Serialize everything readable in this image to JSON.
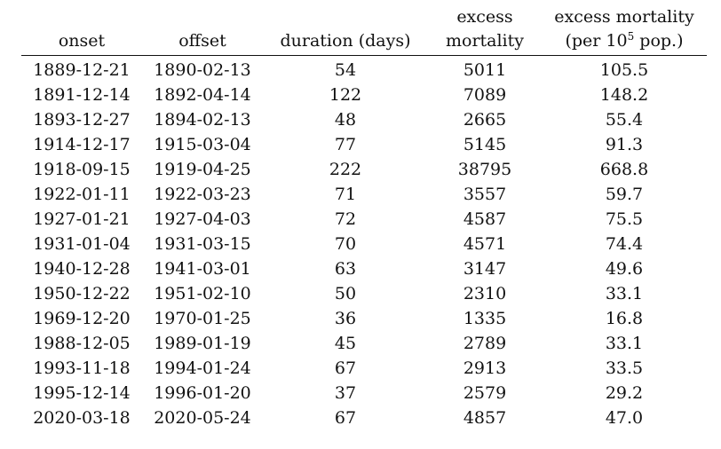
{
  "table": {
    "headers": {
      "onset": "onset",
      "offset": "offset",
      "duration": "duration (days)",
      "excess_line1": "excess",
      "excess_line2": "mortality",
      "rate_line1": "excess mortality",
      "rate_line2_pre": "(per 10",
      "rate_line2_sup": "5",
      "rate_line2_post": " pop.)"
    },
    "rows": [
      {
        "onset": "1889-12-21",
        "offset": "1890-02-13",
        "duration": "54",
        "excess": "5011",
        "rate": "105.5"
      },
      {
        "onset": "1891-12-14",
        "offset": "1892-04-14",
        "duration": "122",
        "excess": "7089",
        "rate": "148.2"
      },
      {
        "onset": "1893-12-27",
        "offset": "1894-02-13",
        "duration": "48",
        "excess": "2665",
        "rate": "55.4"
      },
      {
        "onset": "1914-12-17",
        "offset": "1915-03-04",
        "duration": "77",
        "excess": "5145",
        "rate": "91.3"
      },
      {
        "onset": "1918-09-15",
        "offset": "1919-04-25",
        "duration": "222",
        "excess": "38795",
        "rate": "668.8"
      },
      {
        "onset": "1922-01-11",
        "offset": "1922-03-23",
        "duration": "71",
        "excess": "3557",
        "rate": "59.7"
      },
      {
        "onset": "1927-01-21",
        "offset": "1927-04-03",
        "duration": "72",
        "excess": "4587",
        "rate": "75.5"
      },
      {
        "onset": "1931-01-04",
        "offset": "1931-03-15",
        "duration": "70",
        "excess": "4571",
        "rate": "74.4"
      },
      {
        "onset": "1940-12-28",
        "offset": "1941-03-01",
        "duration": "63",
        "excess": "3147",
        "rate": "49.6"
      },
      {
        "onset": "1950-12-22",
        "offset": "1951-02-10",
        "duration": "50",
        "excess": "2310",
        "rate": "33.1"
      },
      {
        "onset": "1969-12-20",
        "offset": "1970-01-25",
        "duration": "36",
        "excess": "1335",
        "rate": "16.8"
      },
      {
        "onset": "1988-12-05",
        "offset": "1989-01-19",
        "duration": "45",
        "excess": "2789",
        "rate": "33.1"
      },
      {
        "onset": "1993-11-18",
        "offset": "1994-01-24",
        "duration": "67",
        "excess": "2913",
        "rate": "33.5"
      },
      {
        "onset": "1995-12-14",
        "offset": "1996-01-20",
        "duration": "37",
        "excess": "2579",
        "rate": "29.2"
      },
      {
        "onset": "2020-03-18",
        "offset": "2020-05-24",
        "duration": "67",
        "excess": "4857",
        "rate": "47.0"
      }
    ]
  }
}
